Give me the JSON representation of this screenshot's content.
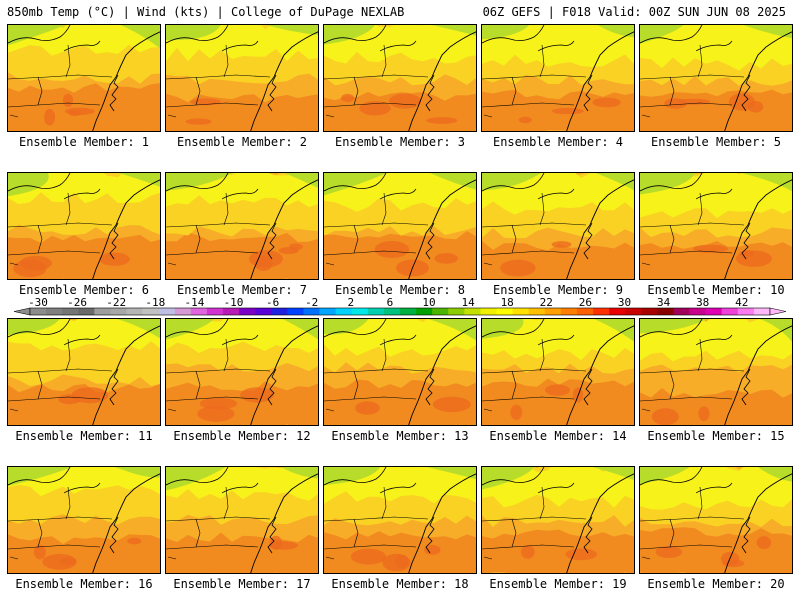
{
  "header": {
    "left": "850mb Temp (°C) | Wind (kts) | College of DuPage NEXLAB",
    "right": "06Z GEFS | F018 Valid: 00Z SUN JUN 08 2025"
  },
  "panel_label_prefix": "Ensemble Member: ",
  "members": [
    1,
    2,
    3,
    4,
    5,
    6,
    7,
    8,
    9,
    10,
    11,
    12,
    13,
    14,
    15,
    16,
    17,
    18,
    19,
    20
  ],
  "colorbar": {
    "tick_labels": [
      "-30",
      "-26",
      "-22",
      "-18",
      "-14",
      "-10",
      "-6",
      "-2",
      "2",
      "6",
      "10",
      "14",
      "18",
      "22",
      "26",
      "30",
      "34",
      "38",
      "42"
    ],
    "colors": [
      "#8c8c8c",
      "#7f7f7f",
      "#757575",
      "#6a6a6a",
      "#9d9d9d",
      "#a7a7a7",
      "#b5b5b5",
      "#c1c1c1",
      "#bfbfe6",
      "#d59ad6",
      "#e063e0",
      "#d132d1",
      "#b71ab7",
      "#7a00c8",
      "#5a00d8",
      "#2020e0",
      "#0040ff",
      "#0070ff",
      "#00a6ff",
      "#00d2ff",
      "#00e8e8",
      "#00d0b0",
      "#00c080",
      "#00b040",
      "#00a000",
      "#4cb400",
      "#8ccc00",
      "#c4e000",
      "#f0f000",
      "#ffff00",
      "#ffe000",
      "#ffc000",
      "#ffa000",
      "#ff8000",
      "#ff6000",
      "#ff3000",
      "#e80000",
      "#c80000",
      "#a80000",
      "#880000",
      "#a0005a",
      "#c8008c",
      "#e000b4",
      "#f040d8",
      "#ff7af0",
      "#ffb8f8"
    ]
  },
  "map_colors": {
    "green": "#b8dc2a",
    "yellow": "#f7f219",
    "yellow_orange": "#f9d223",
    "orange": "#f7ad27",
    "dark_orange": "#f18b20",
    "red_orange": "#ec6a1e"
  }
}
